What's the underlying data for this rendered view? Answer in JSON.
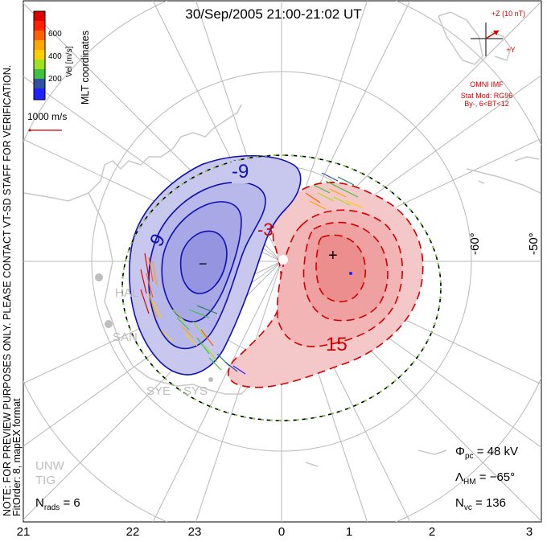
{
  "title": "30/Sep/2005 21:00-21:02 UT",
  "colors": {
    "negative_contour": "#1010b0",
    "positive_contour": "#d00000",
    "negative_fill": "#c8c8ee",
    "positive_fill": "#f4c8c8",
    "coastline": "#c8c8c8",
    "grid": "#b8b8b8",
    "imf_text": "#d00000"
  },
  "colorbar": {
    "label": "Vel [m/s]",
    "ticks": [
      "600",
      "400",
      "200"
    ],
    "colors": [
      "#e00000",
      "#ff6000",
      "#ffa500",
      "#ffd000",
      "#a0e020",
      "#40c040",
      "#208060",
      "#3050a0",
      "#2020ff"
    ]
  },
  "coord_label": "MLT coordinates",
  "scale_vector": "1000 m/s",
  "imf": {
    "z_label": "+Z (10 nT)",
    "y_label": "+Y",
    "source": "OMNI IMF",
    "model": "Stat Mod: RG96",
    "condition": "By-, 6<BT<12"
  },
  "lat_labels": [
    "-60°",
    "-50°"
  ],
  "contour_labels": [
    "-9",
    "9",
    "-3",
    "15"
  ],
  "markers": {
    "min": "−",
    "max": "+"
  },
  "stations": [
    "HAL",
    "SAN",
    "SYE",
    "SYS",
    "UNW",
    "TIG"
  ],
  "mlt_labels": [
    "21",
    "22",
    "23",
    "0",
    "1",
    "2",
    "3"
  ],
  "stats": {
    "phi_pc": "Φ",
    "phi_pc_sub": "pc",
    "phi_pc_value": " = 48 kV",
    "lambda_hm": "Λ",
    "lambda_hm_sub": "HM",
    "lambda_hm_value": " = −65°",
    "nvc": "N",
    "nvc_sub": "vc",
    "nvc_value": " = 136",
    "nrads": "N",
    "nrads_sub": "rads",
    "nrads_value": " = 6"
  },
  "notice": "NOTE: FOR PREVIEW PURPOSES ONLY. PLEASE CONTACT VT-SD STAFF FOR VERIFICATION.",
  "fit_order": "FitOrder: 8, mapEX format"
}
